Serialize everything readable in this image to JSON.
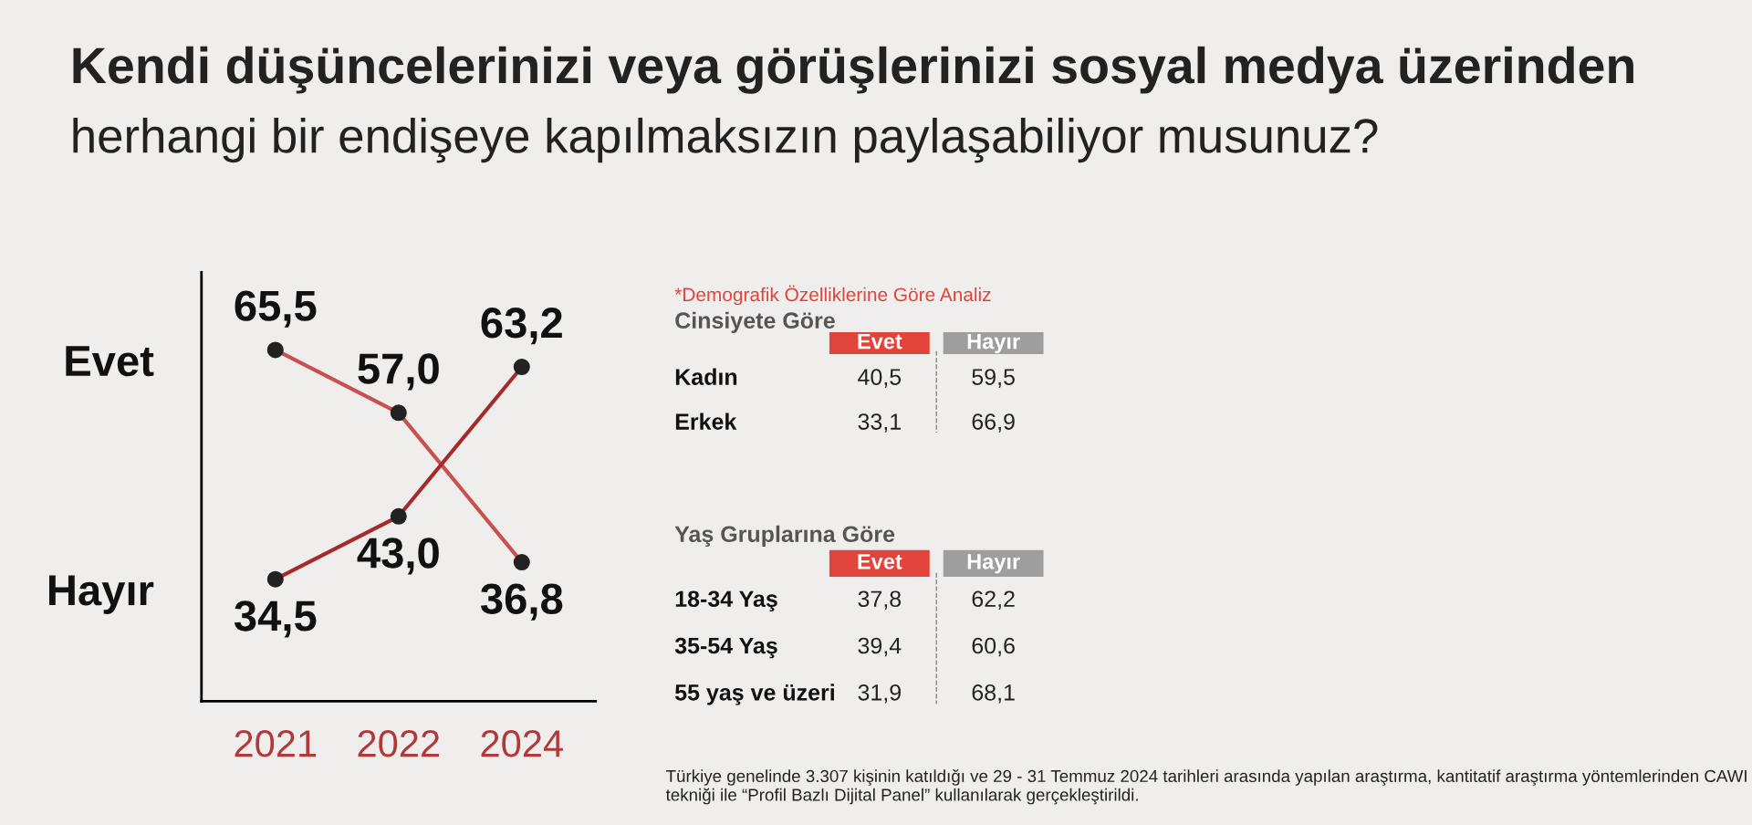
{
  "chart_data": [
    {
      "type": "line",
      "title": "Kendi düşüncelerinizi veya görüşlerinizi sosyal medya üzerinden",
      "subtitle": "herhangi bir endişeye kapılmaksızın paylaşabiliyor musunuz?",
      "categories": [
        "2021",
        "2022",
        "2024"
      ],
      "ylim": [
        18,
        76
      ],
      "tick_labels": "x",
      "marker": "circle",
      "line_style": "solid",
      "grid": false,
      "legend": false,
      "series": [
        {
          "name": "Evet",
          "color": "#c8504f",
          "values": [
            65.5,
            57.0,
            36.8
          ],
          "value_labels": [
            "65,5",
            "57,0",
            "36,8"
          ]
        },
        {
          "name": "Hayır",
          "color": "#a52a2a",
          "values": [
            34.5,
            43.0,
            63.2
          ],
          "value_labels": [
            "34,5",
            "43,0",
            "63,2"
          ]
        }
      ]
    },
    {
      "type": "other",
      "title": "*Demografik Özelliklerine Göre Analiz",
      "subtitle": "Cinsiyete Göre",
      "categories": [
        "Kadın",
        "Erkek"
      ],
      "series": [
        {
          "name": "Evet",
          "values": [
            40.5,
            33.1
          ],
          "value_labels": [
            "40,5",
            "33,1"
          ]
        },
        {
          "name": "Hayır",
          "values": [
            59.5,
            66.9
          ],
          "value_labels": [
            "59,5",
            "66,9"
          ]
        }
      ]
    },
    {
      "type": "other",
      "subtitle": "Yaş Gruplarına Göre",
      "categories": [
        "18-34 Yaş",
        "35-54 Yaş",
        "55 yaş ve üzeri"
      ],
      "series": [
        {
          "name": "Evet",
          "values": [
            37.8,
            39.4,
            31.9
          ],
          "value_labels": [
            "37,8",
            "39,4",
            "31,9"
          ]
        },
        {
          "name": "Hayır",
          "values": [
            62.2,
            60.6,
            68.1
          ],
          "value_labels": [
            "62,2",
            "60,6",
            "68,1"
          ]
        }
      ],
      "annotations": [
        "Türkiye genelinde 3.307 kişinin katıldığı ve 29 - 31 Temmuz 2024 tarihleri arasında yapılan araştırma, kantitatif araştırma yöntemlerinden CAWI tekniği ile “Profil Bazlı Dijital Panel” kullanılarak gerçekleştirildi."
      ]
    }
  ]
}
